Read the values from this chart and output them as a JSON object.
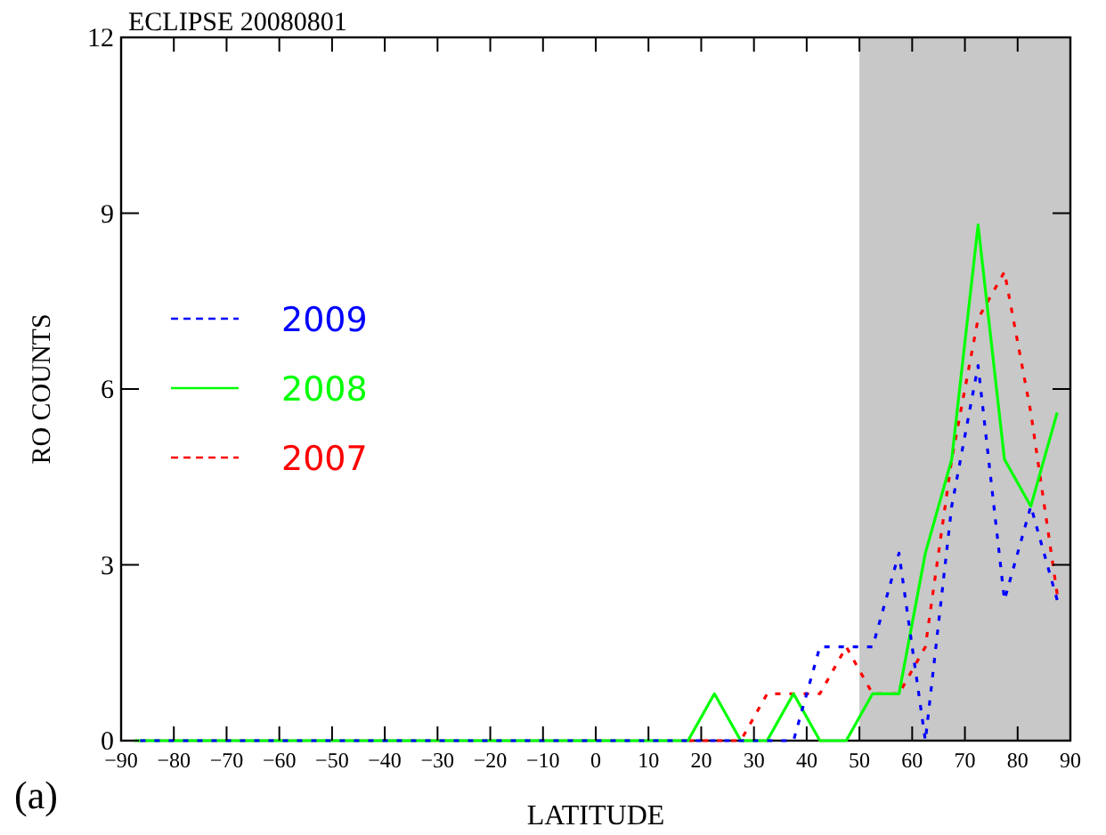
{
  "chart_data": {
    "type": "line",
    "title": "ECLIPSE 20080801",
    "xlabel": "LATITUDE",
    "ylabel": "RO COUNTS",
    "annotations": [
      "(a)"
    ],
    "x": [
      -87.5,
      -82.5,
      -77.5,
      -72.5,
      -67.5,
      -62.5,
      -57.5,
      -52.5,
      -47.5,
      -42.5,
      -37.5,
      -32.5,
      -27.5,
      -22.5,
      -17.5,
      -12.5,
      -7.5,
      -2.5,
      2.5,
      7.5,
      12.5,
      17.5,
      22.5,
      27.5,
      32.5,
      37.5,
      42.5,
      47.5,
      52.5,
      57.5,
      62.5,
      67.5,
      72.5,
      77.5,
      82.5,
      87.5
    ],
    "series": [
      {
        "name": "2009",
        "color": "#0000ff",
        "line_style": "dashed",
        "values": [
          0,
          0,
          0,
          0,
          0,
          0,
          0,
          0,
          0,
          0,
          0,
          0,
          0,
          0,
          0,
          0,
          0,
          0,
          0,
          0,
          0,
          0,
          0,
          0,
          0,
          0,
          1.6,
          1.6,
          1.6,
          3.2,
          0,
          4.0,
          6.4,
          2.4,
          4.0,
          2.4
        ]
      },
      {
        "name": "2008",
        "color": "#00ff00",
        "line_style": "solid",
        "values": [
          0,
          0,
          0,
          0,
          0,
          0,
          0,
          0,
          0,
          0,
          0,
          0,
          0,
          0,
          0,
          0,
          0,
          0,
          0,
          0,
          0,
          0,
          0.8,
          0,
          0,
          0.8,
          0,
          0,
          0.8,
          0.8,
          3.2,
          4.8,
          8.8,
          4.8,
          4.0,
          5.6
        ]
      },
      {
        "name": "2007",
        "color": "#ff0000",
        "line_style": "dashed",
        "values": [
          null,
          null,
          null,
          null,
          null,
          null,
          null,
          null,
          null,
          null,
          null,
          null,
          null,
          null,
          null,
          null,
          null,
          null,
          null,
          null,
          null,
          0,
          0,
          0,
          0.8,
          0.8,
          0.8,
          1.6,
          0.8,
          0.8,
          1.6,
          4.8,
          7.2,
          8.0,
          5.6,
          2.5
        ]
      }
    ],
    "xlim": [
      -90,
      90
    ],
    "xticks": [
      -90,
      -80,
      -70,
      -60,
      -50,
      -40,
      -30,
      -20,
      -10,
      0,
      10,
      20,
      30,
      40,
      50,
      60,
      70,
      80,
      90
    ],
    "ylim": [
      0,
      12
    ],
    "yticks": [
      0,
      3,
      6,
      9,
      12
    ],
    "bands": [
      {
        "axis": "x",
        "from": 50,
        "to": 90,
        "color": "#c8c8c8"
      }
    ],
    "legend": "left",
    "grid": false
  }
}
